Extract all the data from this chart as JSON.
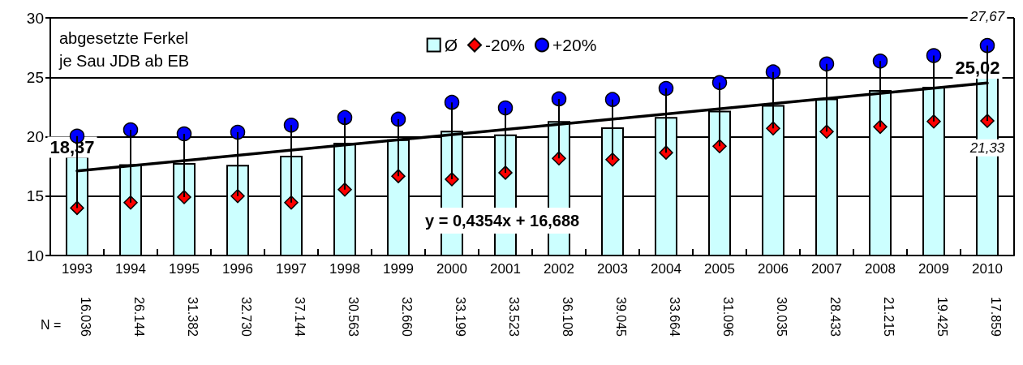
{
  "chart_data": {
    "type": "bar",
    "title": "abgesetzte Ferkel\nje Sau JDB ab EB",
    "categories": [
      "1993",
      "1994",
      "1995",
      "1996",
      "1997",
      "1998",
      "1999",
      "2000",
      "2001",
      "2002",
      "2003",
      "2004",
      "2005",
      "2006",
      "2007",
      "2008",
      "2009",
      "2010"
    ],
    "series": [
      {
        "name": "Ø",
        "color": "#ccffff",
        "values": [
          18.37,
          17.68,
          17.78,
          17.62,
          18.39,
          19.49,
          19.78,
          20.49,
          20.18,
          21.31,
          20.78,
          21.66,
          22.19,
          22.67,
          23.21,
          23.93,
          24.2,
          25.02
        ],
        "value_labels": [
          "18,37",
          null,
          null,
          null,
          null,
          null,
          null,
          null,
          null,
          null,
          null,
          null,
          null,
          null,
          null,
          null,
          null,
          "25,02"
        ]
      },
      {
        "name": "-20%",
        "type": "scatter",
        "marker": "diamond",
        "color": "#ff0000",
        "values": [
          14.0,
          14.45,
          14.92,
          15.0,
          14.45,
          15.55,
          16.68,
          16.42,
          16.97,
          18.18,
          18.07,
          18.66,
          19.2,
          20.7,
          20.43,
          20.83,
          21.28,
          21.33
        ],
        "value_labels": [
          null,
          null,
          null,
          null,
          null,
          null,
          null,
          null,
          null,
          null,
          null,
          null,
          null,
          null,
          null,
          null,
          null,
          "21,33"
        ]
      },
      {
        "name": "+20%",
        "type": "scatter",
        "marker": "circle",
        "color": "#0000ff",
        "values": [
          20.05,
          20.58,
          20.24,
          20.37,
          20.97,
          21.61,
          21.47,
          22.89,
          22.42,
          23.18,
          23.13,
          24.06,
          24.55,
          25.45,
          26.12,
          26.36,
          26.82,
          27.67
        ],
        "value_labels": [
          null,
          null,
          null,
          null,
          null,
          null,
          null,
          null,
          null,
          null,
          null,
          null,
          null,
          null,
          null,
          null,
          null,
          "27,67"
        ]
      },
      {
        "type": "line",
        "color": "#000000",
        "values": [
          17.12,
          null,
          null,
          null,
          null,
          null,
          null,
          null,
          null,
          null,
          null,
          null,
          null,
          null,
          null,
          null,
          null,
          24.52
        ]
      }
    ],
    "ylim": [
      10,
      30
    ],
    "yticks": [
      10,
      15,
      20,
      25,
      30
    ],
    "grid": "y",
    "legend": "top",
    "annotations": [
      "y = 0,4354x + 16,688",
      "N =",
      "16.036",
      "26.144",
      "31.382",
      "32.730",
      "37.144",
      "30.563",
      "32.660",
      "33.199",
      "33.523",
      "36.108",
      "39.045",
      "33.664",
      "31.096",
      "30.035",
      "28.433",
      "21.215",
      "19.425",
      "17.859"
    ]
  }
}
